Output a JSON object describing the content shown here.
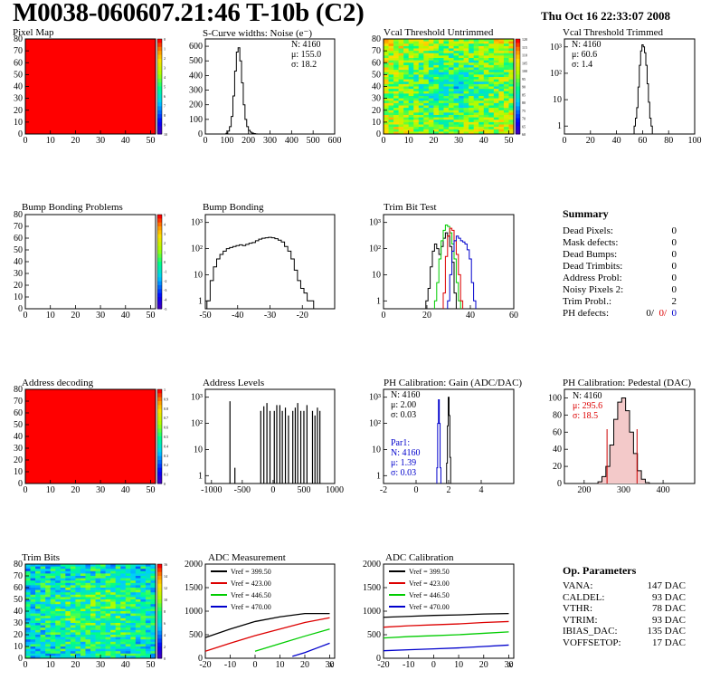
{
  "header": {
    "title": "M0038-060607.21:46 T-10b (C2)",
    "date": "Thu Oct 16 22:33:07 2008"
  },
  "chart_data": [
    {
      "id": "pixel-map",
      "type": "heatmap",
      "title": "Pixel Map",
      "xlim": [
        0,
        52
      ],
      "ylim": [
        0,
        80
      ],
      "xticks": [
        "0",
        "10",
        "20",
        "30",
        "40",
        "50"
      ],
      "yticks": [
        "0",
        "10",
        "20",
        "30",
        "40",
        "50",
        "60",
        "70",
        "80"
      ],
      "fill_color": "#ff0000",
      "colorbar": {
        "min": 0,
        "max": 10,
        "labels": [
          "0",
          "1",
          "2",
          "3",
          "4",
          "5",
          "6",
          "7",
          "8",
          "9",
          "10"
        ]
      }
    },
    {
      "id": "scurve-noise",
      "type": "bar",
      "title": "S-Curve widths: Noise (e⁻)",
      "xlim": [
        0,
        600
      ],
      "ylim": [
        0,
        650
      ],
      "xticks": [
        "0",
        "100",
        "200",
        "300",
        "400",
        "500",
        "600"
      ],
      "yticks": [
        "0",
        "100",
        "200",
        "300",
        "400",
        "500",
        "600"
      ],
      "stats": [
        "N: 4160",
        "μ: 155.0",
        "σ: 18.2"
      ],
      "x": [
        100,
        108,
        116,
        124,
        132,
        140,
        148,
        156,
        164,
        172,
        180,
        188,
        196,
        204,
        212,
        220,
        228,
        236
      ],
      "values": [
        5,
        20,
        50,
        120,
        260,
        430,
        560,
        590,
        500,
        350,
        200,
        100,
        50,
        25,
        12,
        6,
        3,
        1
      ]
    },
    {
      "id": "vcal-untrimmed",
      "type": "heatmap",
      "title": "Vcal Threshold Untrimmed",
      "xlim": [
        0,
        52
      ],
      "ylim": [
        0,
        80
      ],
      "xticks": [
        "0",
        "10",
        "20",
        "30",
        "40",
        "50"
      ],
      "yticks": [
        "0",
        "10",
        "20",
        "30",
        "40",
        "50",
        "60",
        "70",
        "80"
      ],
      "colorbar": {
        "min": 60,
        "max": 120,
        "labels": [
          "120",
          "115",
          "110",
          "105",
          "100",
          "95",
          "90",
          "85",
          "80",
          "75",
          "70",
          "65",
          "60"
        ]
      },
      "value_range": [
        60,
        120
      ],
      "center_value": 85,
      "edge_value": 105
    },
    {
      "id": "vcal-trimmed",
      "type": "bar",
      "title": "Vcal Threshold Trimmed",
      "log_y": true,
      "xlim": [
        0,
        100
      ],
      "ylim": [
        0.5,
        2000
      ],
      "xticks": [
        "0",
        "20",
        "40",
        "60",
        "80",
        "100"
      ],
      "yticks": [
        "1",
        "10",
        "10²",
        "10³"
      ],
      "stats": [
        "N: 4160",
        "μ: 60.6",
        "σ: 1.4"
      ],
      "x": [
        54,
        55,
        56,
        57,
        58,
        59,
        60,
        61,
        62,
        63,
        64,
        65,
        66,
        67
      ],
      "values": [
        1,
        2,
        5,
        30,
        200,
        700,
        1200,
        1000,
        600,
        200,
        40,
        8,
        2,
        1
      ]
    },
    {
      "id": "bump-problems",
      "type": "heatmap",
      "title": "Bump Bonding Problems",
      "xlim": [
        0,
        52
      ],
      "ylim": [
        0,
        80
      ],
      "xticks": [
        "0",
        "10",
        "20",
        "30",
        "40",
        "50"
      ],
      "yticks": [
        "0",
        "10",
        "20",
        "30",
        "40",
        "50",
        "60",
        "70",
        "80"
      ],
      "fill_color": "#ffffff",
      "colorbar": {
        "min": -5,
        "max": 5,
        "labels": [
          "5",
          "4",
          "3",
          "2",
          "1",
          "0",
          "-1",
          "-2",
          "-3",
          "-4",
          "-5"
        ]
      }
    },
    {
      "id": "bump-bonding",
      "type": "bar",
      "title": "Bump Bonding",
      "log_y": true,
      "xlim": [
        -50,
        -10
      ],
      "ylim": [
        0.5,
        2000
      ],
      "xticks": [
        "-50",
        "-40",
        "-30",
        "-20"
      ],
      "yticks": [
        "1",
        "10",
        "10²",
        "10³"
      ],
      "x": [
        -49,
        -48,
        -47,
        -46,
        -45,
        -44,
        -43,
        -42,
        -41,
        -40,
        -39,
        -38,
        -37,
        -36,
        -35,
        -34,
        -33,
        -32,
        -31,
        -30,
        -29,
        -28,
        -27,
        -26,
        -25,
        -24,
        -23,
        -22,
        -21,
        -20,
        -19,
        -18,
        -17
      ],
      "values": [
        1,
        6,
        20,
        40,
        60,
        80,
        100,
        110,
        120,
        130,
        140,
        130,
        145,
        160,
        170,
        200,
        230,
        250,
        260,
        270,
        260,
        240,
        210,
        180,
        120,
        80,
        40,
        15,
        6,
        3,
        2,
        1,
        1
      ]
    },
    {
      "id": "trim-bit-test",
      "type": "line",
      "title": "Trim Bit Test",
      "log_y": true,
      "xlim": [
        0,
        60
      ],
      "ylim": [
        0.5,
        2000
      ],
      "xticks": [
        "0",
        "20",
        "40",
        "60"
      ],
      "yticks": [
        "1",
        "10",
        "10²",
        "10³"
      ],
      "series": [
        {
          "color": "#000000",
          "x": [
            20,
            21,
            22,
            23,
            24,
            25,
            26,
            27,
            28,
            29,
            30,
            31,
            32,
            33
          ],
          "values": [
            1,
            3,
            20,
            80,
            150,
            100,
            60,
            120,
            250,
            400,
            300,
            120,
            30,
            2
          ]
        },
        {
          "color": "#00cc00",
          "x": [
            24,
            25,
            26,
            27,
            28,
            29,
            30,
            31,
            32,
            33,
            34,
            35
          ],
          "values": [
            1,
            5,
            40,
            200,
            500,
            800,
            700,
            400,
            150,
            40,
            5,
            1
          ]
        },
        {
          "color": "#dd0000",
          "x": [
            28,
            29,
            30,
            31,
            32,
            33,
            34,
            35,
            36
          ],
          "values": [
            2,
            50,
            300,
            600,
            500,
            200,
            60,
            10,
            1
          ]
        },
        {
          "color": "#0000cc",
          "x": [
            30,
            31,
            32,
            33,
            34,
            35,
            36,
            37,
            38,
            39,
            40,
            41,
            42
          ],
          "values": [
            1,
            10,
            80,
            200,
            300,
            250,
            200,
            180,
            150,
            90,
            40,
            5,
            1
          ]
        }
      ]
    },
    {
      "id": "address-decoding",
      "type": "heatmap",
      "title": "Address decoding",
      "xlim": [
        0,
        52
      ],
      "ylim": [
        0,
        80
      ],
      "xticks": [
        "0",
        "10",
        "20",
        "30",
        "40",
        "50"
      ],
      "yticks": [
        "0",
        "10",
        "20",
        "30",
        "40",
        "50",
        "60",
        "70",
        "80"
      ],
      "fill_color": "#ff0000",
      "colorbar": {
        "min": 0,
        "max": 1,
        "labels": [
          "1",
          "0.9",
          "0.8",
          "0.7",
          "0.6",
          "0.5",
          "0.4",
          "0.3",
          "0.2",
          "0.1",
          "0"
        ]
      }
    },
    {
      "id": "address-levels",
      "type": "bar",
      "title": "Address Levels",
      "log_y": true,
      "xlim": [
        -1100,
        1000
      ],
      "ylim": [
        0.5,
        2000
      ],
      "xticks": [
        "-1000",
        "-500",
        "0",
        "500",
        "1000"
      ],
      "yticks": [
        "1",
        "10",
        "10²",
        "10³"
      ],
      "x": [
        -700,
        -620,
        -200,
        -150,
        -100,
        -50,
        20,
        60,
        110,
        150,
        200,
        250,
        320,
        360,
        400,
        450,
        500,
        550,
        640,
        680,
        720,
        760
      ],
      "values": [
        700,
        2,
        300,
        450,
        600,
        300,
        300,
        500,
        500,
        300,
        400,
        200,
        300,
        400,
        600,
        300,
        300,
        500,
        300,
        200,
        400,
        300
      ]
    },
    {
      "id": "ph-gain",
      "type": "bar",
      "title": "PH Calibration: Gain (ADC/DAC)",
      "log_y": true,
      "xlim": [
        -2,
        6
      ],
      "ylim": [
        0.5,
        2000
      ],
      "xticks": [
        "-2",
        "0",
        "2",
        "4"
      ],
      "yticks": [
        "1",
        "10",
        "10²",
        "10³"
      ],
      "stats": [
        "N: 4160",
        "μ: 2.00",
        "σ: 0.03"
      ],
      "stats2": [
        "Par1:",
        "N: 4160",
        "μ: 1.39",
        "σ: 0.03"
      ],
      "series": [
        {
          "color": "#000000",
          "x": [
            1.9,
            1.95,
            2.0,
            2.05,
            2.1
          ],
          "values": [
            3,
            80,
            1000,
            200,
            5
          ]
        },
        {
          "color": "#0000cc",
          "x": [
            1.3,
            1.35,
            1.4,
            1.45,
            1.5
          ],
          "values": [
            2,
            100,
            800,
            100,
            2
          ]
        }
      ]
    },
    {
      "id": "ph-pedestal",
      "type": "bar",
      "title": "PH Calibration: Pedestal (DAC)",
      "xlim": [
        150,
        480
      ],
      "ylim": [
        0,
        110
      ],
      "xticks": [
        "200",
        "300",
        "400"
      ],
      "yticks": [
        "0",
        "20",
        "40",
        "60",
        "80",
        "100"
      ],
      "stats": [
        "N: 4160",
        "μ: 295.6",
        "σ: 18.5"
      ],
      "x": [
        240,
        250,
        260,
        270,
        280,
        290,
        300,
        310,
        320,
        330,
        340,
        350,
        360
      ],
      "values": [
        2,
        8,
        20,
        45,
        75,
        95,
        100,
        85,
        60,
        35,
        15,
        5,
        1
      ],
      "markers_x": [
        258,
        334
      ]
    },
    {
      "id": "trim-bits",
      "type": "heatmap",
      "title": "Trim Bits",
      "xlim": [
        0,
        52
      ],
      "ylim": [
        0,
        80
      ],
      "xticks": [
        "0",
        "10",
        "20",
        "30",
        "40",
        "50"
      ],
      "yticks": [
        "0",
        "10",
        "20",
        "30",
        "40",
        "50",
        "60",
        "70",
        "80"
      ],
      "colorbar": {
        "min": 0,
        "max": 16,
        "labels": [
          "16",
          "14",
          "12",
          "10",
          "8",
          "6",
          "4",
          "2",
          "0"
        ]
      },
      "value_range": [
        0,
        16
      ],
      "center_value": 9,
      "edge_value": 6
    },
    {
      "id": "adc-measurement",
      "type": "line",
      "title": "ADC Measurement",
      "xlim": [
        -20,
        32
      ],
      "ylim": [
        0,
        2000
      ],
      "xticks": [
        "-20",
        "-10",
        "0",
        "10",
        "20",
        "30"
      ],
      "yticks": [
        "0",
        "500",
        "1000",
        "1500",
        "2000"
      ],
      "x_hidden_label": "30",
      "series": [
        {
          "name": "Vref = 399.50",
          "color": "#000000",
          "x": [
            -20,
            -10,
            0,
            10,
            20,
            30
          ],
          "values": [
            440,
            620,
            780,
            880,
            950,
            950
          ]
        },
        {
          "name": "Vref = 423.00",
          "color": "#dd0000",
          "x": [
            -20,
            -10,
            0,
            10,
            20,
            30
          ],
          "values": [
            150,
            320,
            480,
            620,
            760,
            860
          ]
        },
        {
          "name": "Vref = 446.50",
          "color": "#00cc00",
          "x": [
            0,
            10,
            20,
            30
          ],
          "values": [
            150,
            310,
            470,
            620
          ]
        },
        {
          "name": "Vref = 470.00",
          "color": "#0000cc",
          "x": [
            15,
            20,
            25,
            30
          ],
          "values": [
            40,
            120,
            220,
            320
          ]
        }
      ]
    },
    {
      "id": "adc-calibration",
      "type": "line",
      "title": "ADC Calibration",
      "xlim": [
        -20,
        32
      ],
      "ylim": [
        0,
        2000
      ],
      "xticks": [
        "-20",
        "-10",
        "0",
        "10",
        "20",
        "30"
      ],
      "yticks": [
        "0",
        "500",
        "1000",
        "1500",
        "2000"
      ],
      "x_hidden_label": "30",
      "series": [
        {
          "name": "Vref = 399.50",
          "color": "#000000",
          "x": [
            -20,
            -10,
            0,
            10,
            20,
            30
          ],
          "values": [
            870,
            890,
            910,
            920,
            940,
            950
          ]
        },
        {
          "name": "Vref = 423.00",
          "color": "#dd0000",
          "x": [
            -20,
            -10,
            0,
            10,
            20,
            30
          ],
          "values": [
            660,
            690,
            710,
            730,
            760,
            780
          ]
        },
        {
          "name": "Vref = 446.50",
          "color": "#00cc00",
          "x": [
            -20,
            -10,
            0,
            10,
            20,
            30
          ],
          "values": [
            430,
            460,
            480,
            500,
            530,
            560
          ]
        },
        {
          "name": "Vref = 470.00",
          "color": "#0000cc",
          "x": [
            -20,
            -10,
            0,
            10,
            20,
            30
          ],
          "values": [
            160,
            180,
            200,
            220,
            250,
            280
          ]
        }
      ]
    }
  ],
  "summary": {
    "title": "Summary",
    "rows": [
      {
        "label": "Dead Pixels:",
        "value": "0"
      },
      {
        "label": "Mask defects:",
        "value": "0"
      },
      {
        "label": "Dead Bumps:",
        "value": "0"
      },
      {
        "label": "Dead Trimbits:",
        "value": "0"
      },
      {
        "label": "Address Probl:",
        "value": "0"
      },
      {
        "label": "Noisy Pixels 2:",
        "value": "0"
      },
      {
        "label": "Trim Probl.:",
        "value": "2"
      }
    ],
    "ph_label": "PH defects:",
    "ph_values": [
      {
        "text": "0/",
        "color": "#000000"
      },
      {
        "text": "0/",
        "color": "#dd0000"
      },
      {
        "text": "0",
        "color": "#0000cc"
      }
    ]
  },
  "op_params": {
    "title": "Op. Parameters",
    "rows": [
      {
        "label": "VANA:",
        "value": "147 DAC"
      },
      {
        "label": "CALDEL:",
        "value": "93 DAC"
      },
      {
        "label": "VTHR:",
        "value": "78 DAC"
      },
      {
        "label": "VTRIM:",
        "value": "93 DAC"
      },
      {
        "label": "IBIAS_DAC:",
        "value": "135 DAC"
      },
      {
        "label": "VOFFSETOP:",
        "value": "17 DAC"
      }
    ]
  }
}
